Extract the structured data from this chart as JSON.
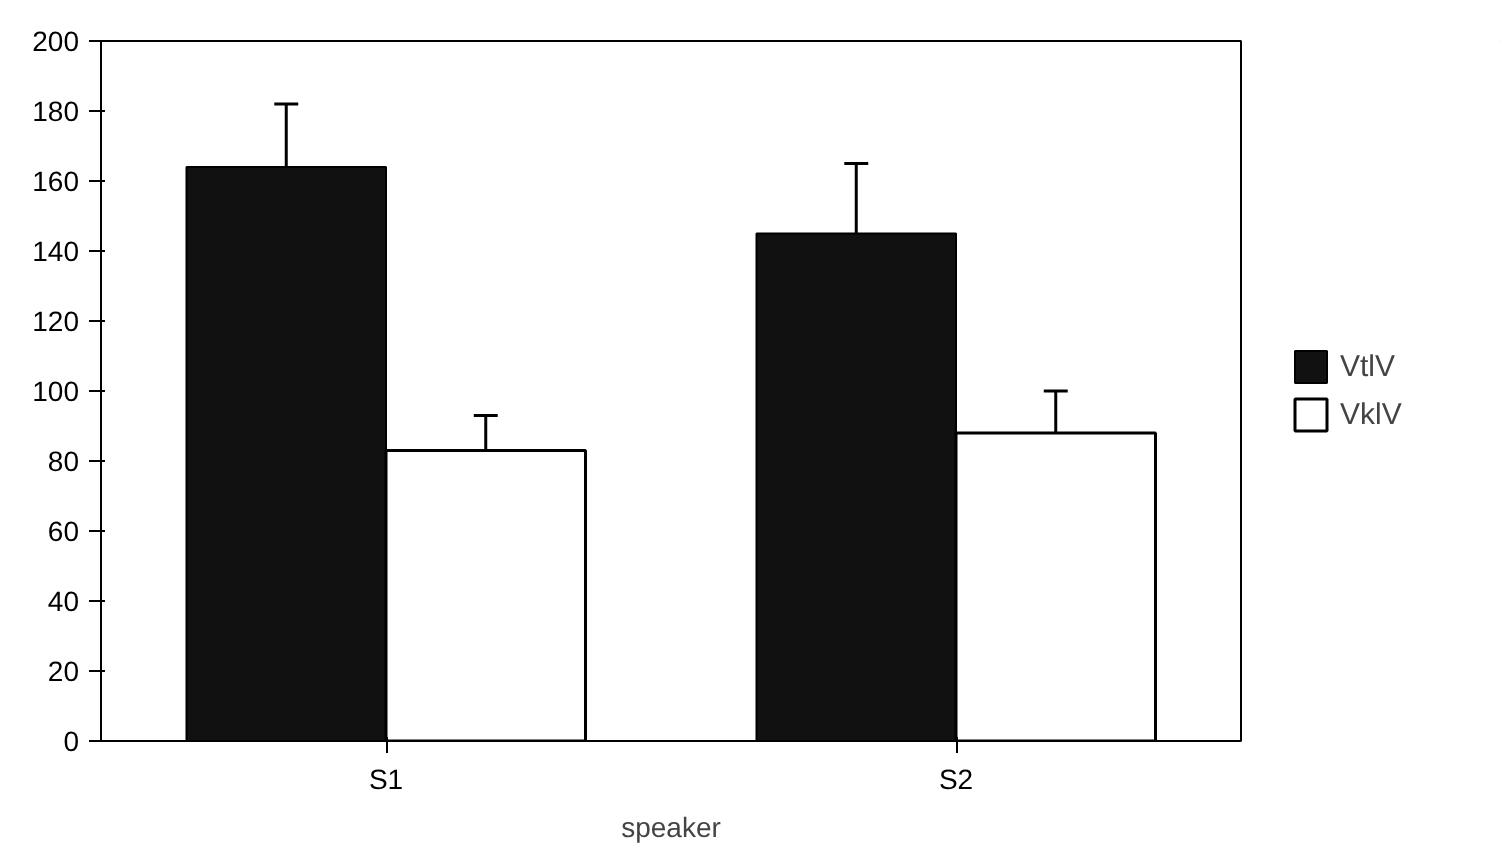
{
  "chart_data": {
    "type": "bar",
    "categories": [
      "S1",
      "S2"
    ],
    "xlabel": "speaker",
    "series": [
      {
        "name": "VtlV",
        "color": "#111111",
        "values": [
          164,
          145
        ],
        "errors": [
          [
            164,
            182
          ],
          [
            145,
            165
          ]
        ]
      },
      {
        "name": "VklV",
        "color": "#ffffff",
        "values": [
          83,
          88
        ],
        "errors": [
          [
            83,
            93
          ],
          [
            88,
            100
          ]
        ]
      }
    ],
    "ylim": [
      0,
      200
    ],
    "yticks": [
      0,
      20,
      40,
      60,
      80,
      100,
      120,
      140,
      160,
      180,
      200
    ],
    "grid": false,
    "legend": "right"
  }
}
